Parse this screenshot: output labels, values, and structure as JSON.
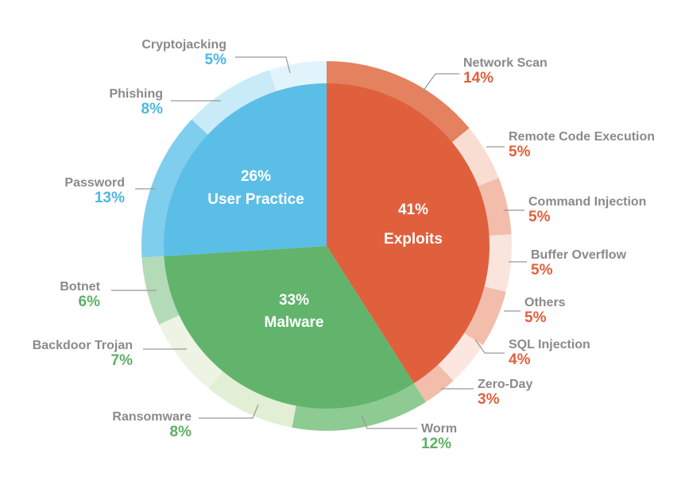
{
  "chart_data": {
    "type": "sunburst",
    "title": "",
    "label_color": "#8a8a8a",
    "categories": [
      {
        "name": "Exploits",
        "value": 41,
        "label": "41%",
        "color": "#E0603D",
        "children": [
          {
            "name": "Network Scan",
            "value": 14,
            "label": "14%",
            "color": "#E4825F"
          },
          {
            "name": "Remote Code Execution",
            "value": 5,
            "label": "5%",
            "color": "#F9DDD3"
          },
          {
            "name": "Command Injection",
            "value": 5,
            "label": "5%",
            "color": "#F2BDAA"
          },
          {
            "name": "Buffer Overflow",
            "value": 5,
            "label": "5%",
            "color": "#FAE5DD"
          },
          {
            "name": "Others",
            "value": 5,
            "label": "5%",
            "color": "#F2BDAA"
          },
          {
            "name": "SQL Injection",
            "value": 4,
            "label": "4%",
            "color": "#FBE7E0"
          },
          {
            "name": "Zero-Day",
            "value": 3,
            "label": "3%",
            "color": "#F2BDAA"
          }
        ]
      },
      {
        "name": "Malware",
        "value": 33,
        "label": "33%",
        "color": "#62B46C",
        "children": [
          {
            "name": "Worm",
            "value": 12,
            "label": "12%",
            "color": "#8ECB93"
          },
          {
            "name": "Ransomware",
            "value": 8,
            "label": "8%",
            "color": "#E2EFD4"
          },
          {
            "name": "Backdoor Trojan",
            "value": 7,
            "label": "7%",
            "color": "#EDF4E3"
          },
          {
            "name": "Botnet",
            "value": 6,
            "label": "6%",
            "color": "#B4DBB8"
          }
        ]
      },
      {
        "name": "User Practice",
        "value": 26,
        "label": "26%",
        "color": "#5BBEE6",
        "children": [
          {
            "name": "Password",
            "value": 13,
            "label": "13%",
            "color": "#80CEEE"
          },
          {
            "name": "Phishing",
            "value": 8,
            "label": "8%",
            "color": "#C9EAF7"
          },
          {
            "name": "Cryptojacking",
            "value": 5,
            "label": "5%",
            "color": "#E2F4FB"
          }
        ]
      }
    ],
    "pct_colors": {
      "Exploits": "#E0603D",
      "Malware": "#5DB065",
      "User Practice": "#4DB7E2"
    }
  }
}
